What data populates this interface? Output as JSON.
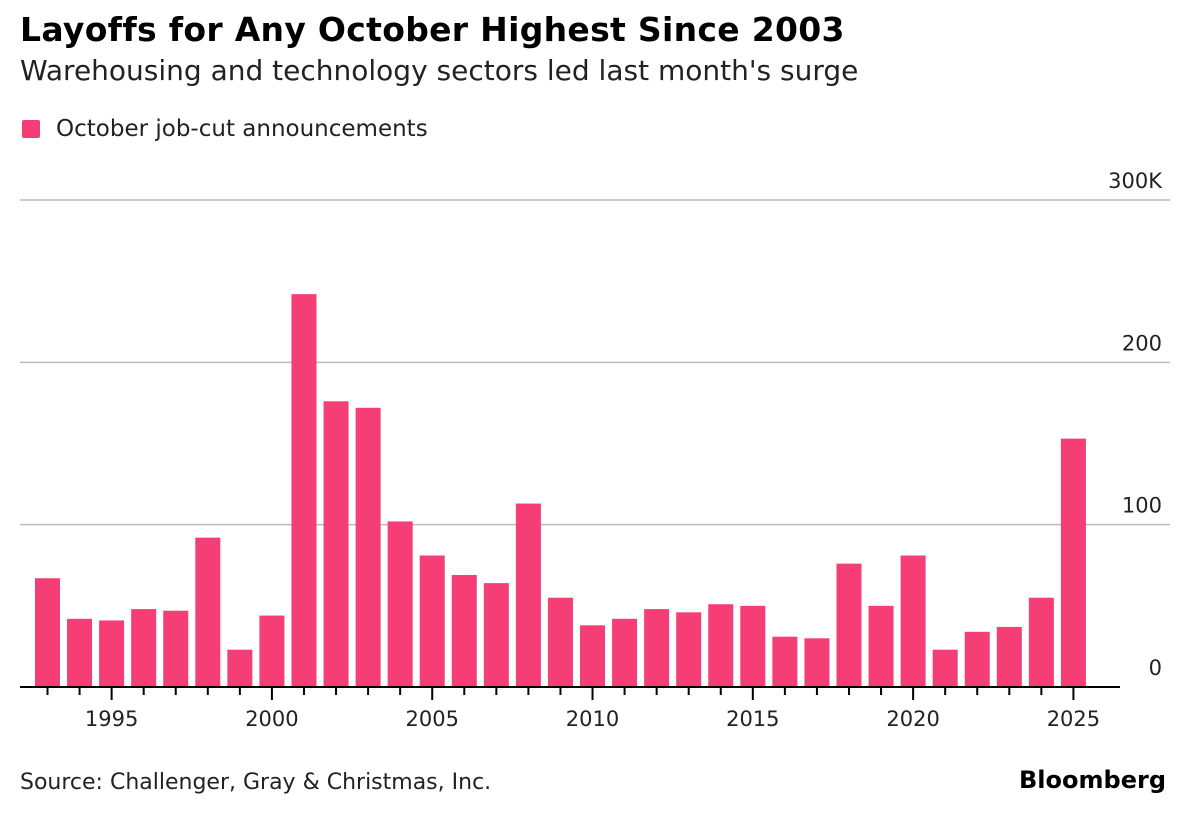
{
  "title": "Layoffs for Any October Highest Since 2003",
  "subtitle": "Warehousing and technology sectors led last month's surge",
  "source": "Source: Challenger, Gray & Christmas, Inc.",
  "brand": "Bloomberg",
  "colors": {
    "bar": "#f53d76",
    "grid": "#bbbbbb",
    "axis": "#000000"
  },
  "chart_data": {
    "type": "bar",
    "legend": {
      "entries": [
        "October job-cut announcements"
      ],
      "placement": "top-left"
    },
    "categories": [
      1993,
      1994,
      1995,
      1996,
      1997,
      1998,
      1999,
      2000,
      2001,
      2002,
      2003,
      2004,
      2005,
      2006,
      2007,
      2008,
      2009,
      2010,
      2011,
      2012,
      2013,
      2014,
      2015,
      2016,
      2017,
      2018,
      2019,
      2020,
      2021,
      2022,
      2023,
      2024,
      2025
    ],
    "series": [
      {
        "name": "October job-cut announcements",
        "values": [
          67,
          42,
          41,
          48,
          47,
          92,
          23,
          44,
          242,
          176,
          172,
          102,
          81,
          69,
          64,
          113,
          55,
          38,
          42,
          48,
          46,
          51,
          50,
          31,
          30,
          76,
          50,
          81,
          23,
          34,
          37,
          55,
          153
        ]
      }
    ],
    "ylim": [
      0,
      300
    ],
    "yticks": [
      {
        "value": 0,
        "label": "0"
      },
      {
        "value": 100,
        "label": "100"
      },
      {
        "value": 200,
        "label": "200"
      },
      {
        "value": 300,
        "label": "300K"
      }
    ],
    "xticks": [
      "1995",
      "2000",
      "2005",
      "2010",
      "2015",
      "2020",
      "2025"
    ],
    "grid": true,
    "y_axis_side": "right"
  }
}
